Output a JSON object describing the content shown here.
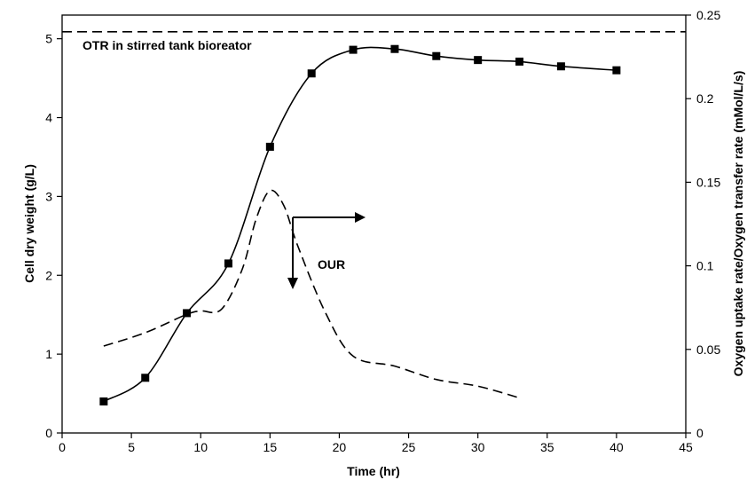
{
  "chart_data": {
    "type": "line",
    "x_axis": {
      "label": "Time (hr)",
      "range": [
        0,
        45
      ],
      "ticks": [
        0,
        5,
        10,
        15,
        20,
        25,
        30,
        35,
        40,
        45
      ],
      "tick_labels": [
        "0",
        "5",
        "10",
        "15",
        "20",
        "25",
        "30",
        "35",
        "40",
        "45"
      ]
    },
    "y_left": {
      "label": "Cell dry weight (g/L)",
      "range": [
        0,
        5.3
      ],
      "ticks": [
        0,
        1,
        2,
        3,
        4,
        5
      ],
      "tick_labels": [
        "0",
        "1",
        "2",
        "3",
        "4",
        "5"
      ]
    },
    "y_right": {
      "label": "Oxygen uptake rate/Oxygen transfer rate (mMol/L/s)",
      "range": [
        0,
        0.25
      ],
      "ticks": [
        0,
        0.05,
        0.1,
        0.15,
        0.2,
        0.25
      ],
      "tick_labels": [
        "0",
        "0.05",
        "0.1",
        "0.15",
        "0.2",
        "0.25"
      ]
    },
    "grid": false,
    "series": [
      {
        "axis": "left",
        "style": "solid",
        "marker": "square",
        "x": [
          3,
          6,
          9,
          12,
          15,
          18,
          21,
          24,
          27,
          30,
          33,
          36,
          40
        ],
        "y": [
          0.4,
          0.7,
          1.52,
          2.15,
          3.63,
          4.56,
          4.86,
          4.87,
          4.78,
          4.73,
          4.71,
          4.65,
          4.6
        ]
      },
      {
        "axis": "right",
        "style": "dashed",
        "marker": "none",
        "x": [
          3,
          6,
          9,
          10,
          11.5,
          13,
          14,
          15,
          16,
          17,
          19,
          21,
          24,
          27,
          30,
          33
        ],
        "y": [
          0.052,
          0.06,
          0.071,
          0.073,
          0.074,
          0.098,
          0.128,
          0.145,
          0.136,
          0.112,
          0.072,
          0.046,
          0.04,
          0.032,
          0.028,
          0.021
        ]
      },
      {
        "axis": "right",
        "style": "dashed",
        "marker": "none",
        "x": [
          0,
          45
        ],
        "y": [
          0.24,
          0.24
        ]
      }
    ],
    "annotations": [
      {
        "text": "OTR in stirred tank bioreator",
        "x": 1.5,
        "y_right": 0.23
      },
      {
        "text": "OUR",
        "x": 18.5,
        "y_right": 0.088
      }
    ]
  }
}
